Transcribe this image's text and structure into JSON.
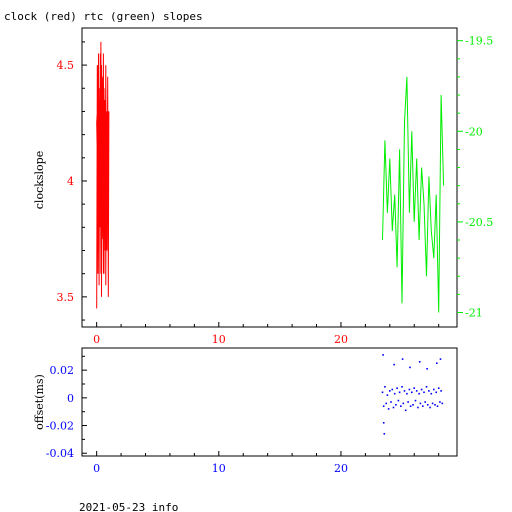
{
  "page": {
    "title": "clock (red) rtc (green) slopes",
    "footer": "2021-05-23 info"
  },
  "colors": {
    "clock": "#ff0000",
    "rtc": "#00ee00",
    "offset": "#0000ff",
    "frame": "#000000"
  },
  "chart_data": [
    {
      "type": "line",
      "title": "clock (red) rtc (green) slopes",
      "ylabel": "clockslope",
      "xlim": [
        -1.2,
        29.5
      ],
      "ylim_left": [
        3.37,
        4.66
      ],
      "ylim_right": [
        -21.08,
        -19.43
      ],
      "x_ticks": [
        0,
        10,
        20
      ],
      "y_ticks_left": [
        3.5,
        4,
        4.5
      ],
      "y_tick_labels_left": [
        "3.5",
        "4",
        "4.5"
      ],
      "y_ticks_right": [
        -21,
        -20.5,
        -20,
        -19.5
      ],
      "y_tick_labels_right": [
        "-21",
        "-20.5",
        "-20",
        "-19.5"
      ],
      "series": [
        {
          "axis": "left",
          "x": [
            0.0,
            0.05,
            0.1,
            0.15,
            0.2,
            0.25,
            0.3,
            0.35,
            0.4,
            0.45,
            0.5,
            0.55,
            0.6,
            0.65,
            0.7,
            0.75,
            0.8,
            0.85,
            0.9,
            0.95,
            1.0,
            0.95,
            0.9,
            0.85,
            0.8,
            0.75,
            0.7,
            0.65,
            0.6,
            0.55,
            0.5,
            0.45,
            0.4,
            0.35,
            0.3,
            0.25,
            0.2,
            0.15,
            0.1,
            0.05,
            0.0,
            0.05,
            0.1,
            0.15,
            0.2,
            0.25,
            0.3,
            0.35,
            0.4,
            0.45,
            0.5,
            0.55,
            0.6,
            0.65,
            0.7,
            0.75,
            0.8,
            0.85,
            0.9,
            0.95,
            1.0
          ],
          "y": [
            3.45,
            4.5,
            3.6,
            4.55,
            3.55,
            4.4,
            3.9,
            4.6,
            3.5,
            4.45,
            4.0,
            4.55,
            3.6,
            4.35,
            3.7,
            4.5,
            3.8,
            4.3,
            3.9,
            4.2,
            4.3,
            3.5,
            4.45,
            3.7,
            4.15,
            3.55,
            4.2,
            3.85,
            4.4,
            3.6,
            4.25,
            3.9,
            4.5,
            3.65,
            4.1,
            3.8,
            4.35,
            4.0,
            4.2,
            4.3,
            4.25,
            4.1,
            4.5,
            3.7,
            4.2,
            3.9,
            4.55,
            3.6,
            4.3,
            4.0,
            3.75,
            4.4,
            3.85,
            4.15,
            3.95,
            4.5,
            3.8,
            4.25,
            4.05,
            4.3,
            4.28
          ]
        },
        {
          "axis": "right",
          "x": [
            23.4,
            23.6,
            23.8,
            24.0,
            24.2,
            24.4,
            24.6,
            24.8,
            25.0,
            25.2,
            25.4,
            25.6,
            25.8,
            26.0,
            26.2,
            26.4,
            26.6,
            26.8,
            27.0,
            27.2,
            27.4,
            27.6,
            27.8,
            28.0,
            28.2,
            28.4
          ],
          "y": [
            -20.6,
            -20.05,
            -20.45,
            -20.15,
            -20.55,
            -20.35,
            -20.75,
            -20.1,
            -20.95,
            -19.95,
            -19.7,
            -20.45,
            -20.0,
            -20.5,
            -20.15,
            -20.6,
            -20.2,
            -20.4,
            -20.8,
            -20.25,
            -20.55,
            -20.7,
            -20.35,
            -21.0,
            -19.8,
            -20.3
          ]
        }
      ]
    },
    {
      "type": "scatter",
      "ylabel": "offset(ms)",
      "xlim": [
        -1.2,
        29.5
      ],
      "ylim": [
        -0.042,
        0.036
      ],
      "x_ticks": [
        0,
        10,
        20
      ],
      "y_ticks": [
        -0.04,
        -0.02,
        0,
        0.02
      ],
      "y_tick_labels": [
        "-0.04",
        "-0.02",
        "0",
        "0.02"
      ],
      "series": [
        {
          "x": [
            23.4,
            23.5,
            23.6,
            23.7,
            23.8,
            23.9,
            24.0,
            24.1,
            24.2,
            24.3,
            24.4,
            24.5,
            24.6,
            24.7,
            24.8,
            24.9,
            25.0,
            25.1,
            25.2,
            25.3,
            25.4,
            25.5,
            25.6,
            25.7,
            25.8,
            25.9,
            26.0,
            26.1,
            26.2,
            26.3,
            26.4,
            26.5,
            26.6,
            26.7,
            26.8,
            26.9,
            27.0,
            27.1,
            27.2,
            27.3,
            27.4,
            27.5,
            27.6,
            27.7,
            27.8,
            27.9,
            28.0,
            28.1,
            28.2,
            28.3,
            23.45,
            23.55,
            24.35,
            25.05,
            25.65,
            26.45,
            27.05,
            27.85,
            28.15,
            23.5
          ],
          "y": [
            0.004,
            -0.006,
            0.008,
            -0.004,
            0.002,
            -0.008,
            0.005,
            -0.003,
            0.006,
            -0.007,
            0.003,
            -0.005,
            0.007,
            -0.002,
            0.004,
            -0.006,
            0.008,
            -0.004,
            0.005,
            -0.009,
            0.003,
            -0.003,
            0.006,
            -0.006,
            0.004,
            -0.005,
            0.007,
            -0.002,
            0.005,
            -0.007,
            0.003,
            -0.004,
            0.006,
            -0.006,
            0.004,
            -0.003,
            0.008,
            -0.005,
            0.005,
            -0.007,
            0.003,
            -0.004,
            0.006,
            -0.005,
            0.004,
            -0.006,
            0.007,
            -0.003,
            0.005,
            -0.004,
            0.031,
            -0.026,
            0.024,
            0.028,
            0.022,
            0.026,
            0.021,
            0.025,
            0.028,
            -0.018
          ]
        }
      ]
    }
  ]
}
